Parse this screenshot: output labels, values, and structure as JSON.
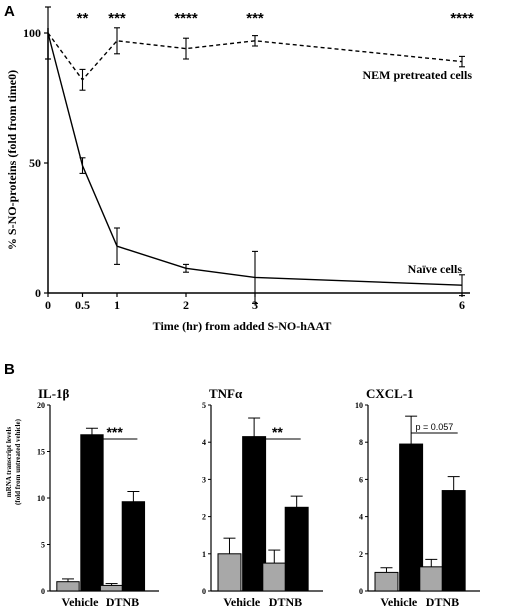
{
  "panelA": {
    "label": "A",
    "ylabel": "% S-NO-proteins (fold from time0)",
    "xlabel": "Time (hr) from added S-NO-hAAT",
    "xticks": [
      "0",
      "0.5",
      "1",
      "2",
      "3",
      "6"
    ],
    "yticks": [
      "0",
      "50",
      "100"
    ],
    "stars": [
      "**",
      "***",
      "****",
      "***",
      "****"
    ],
    "annotations": {
      "nem": "NEM pretreated cells",
      "naive": "Naïve cells"
    }
  },
  "panelB": {
    "label": "B",
    "ylabel_line1": "mRNA transcript levels",
    "ylabel_line2": "(fold from untreated vehicle)",
    "xticks": [
      "Vehicle",
      "DTNB"
    ]
  },
  "chart_data": [
    {
      "type": "line",
      "x": [
        0,
        0.5,
        1,
        2,
        3,
        6
      ],
      "xlim": [
        0,
        6
      ],
      "ylim": [
        0,
        100
      ],
      "series": [
        {
          "name": "NEM pretreated cells",
          "style": "dashed",
          "values": [
            100,
            82,
            97,
            94,
            97,
            89
          ],
          "errors": [
            10,
            4,
            5,
            4,
            2,
            2
          ]
        },
        {
          "name": "Naïve cells",
          "style": "solid",
          "values": [
            100,
            49,
            18,
            9.5,
            6,
            3
          ],
          "errors": [
            10,
            3,
            7,
            1.5,
            10,
            4
          ]
        }
      ],
      "significance": [
        {
          "x": 0.5,
          "label": "**"
        },
        {
          "x": 1,
          "label": "***"
        },
        {
          "x": 2,
          "label": "****"
        },
        {
          "x": 3,
          "label": "***"
        },
        {
          "x": 6,
          "label": "****"
        }
      ]
    },
    {
      "type": "bar",
      "title": "IL-1β",
      "categories": [
        "Vehicle",
        "DTNB"
      ],
      "ylim": [
        0,
        20
      ],
      "yticks": [
        0,
        5,
        10,
        15,
        20
      ],
      "series": [
        {
          "color": "#a8a8a8",
          "values": [
            1.0,
            0.6
          ],
          "errors": [
            0.3,
            0.2
          ]
        },
        {
          "color": "#000000",
          "values": [
            16.8,
            9.6
          ],
          "errors": [
            0.7,
            1.1
          ]
        }
      ],
      "significance": "***"
    },
    {
      "type": "bar",
      "title": "TNFα",
      "categories": [
        "Vehicle",
        "DTNB"
      ],
      "ylim": [
        0,
        5
      ],
      "yticks": [
        0,
        1,
        2,
        3,
        4,
        5
      ],
      "series": [
        {
          "color": "#a8a8a8",
          "values": [
            1.0,
            0.75
          ],
          "errors": [
            0.42,
            0.35
          ]
        },
        {
          "color": "#000000",
          "values": [
            4.15,
            2.25
          ],
          "errors": [
            0.5,
            0.3
          ]
        }
      ],
      "significance": "**"
    },
    {
      "type": "bar",
      "title": "CXCL-1",
      "categories": [
        "Vehicle",
        "DTNB"
      ],
      "ylim": [
        0,
        10
      ],
      "yticks": [
        0,
        2,
        4,
        6,
        8,
        10
      ],
      "series": [
        {
          "color": "#a8a8a8",
          "values": [
            1.0,
            1.3
          ],
          "errors": [
            0.25,
            0.4
          ]
        },
        {
          "color": "#000000",
          "values": [
            7.9,
            5.4
          ],
          "errors": [
            1.5,
            0.75
          ]
        }
      ],
      "significance": "p = 0.057"
    }
  ]
}
